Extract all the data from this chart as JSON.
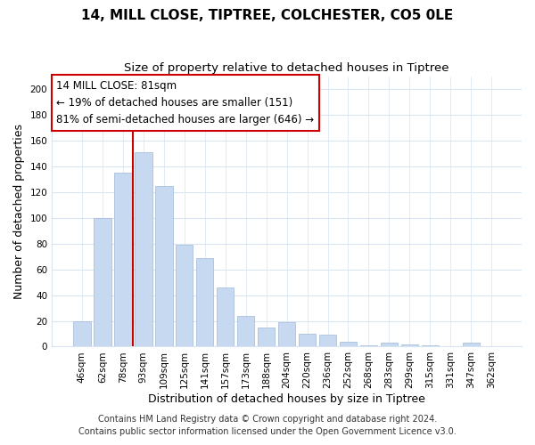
{
  "title": "14, MILL CLOSE, TIPTREE, COLCHESTER, CO5 0LE",
  "subtitle": "Size of property relative to detached houses in Tiptree",
  "xlabel": "Distribution of detached houses by size in Tiptree",
  "ylabel": "Number of detached properties",
  "bar_labels": [
    "46sqm",
    "62sqm",
    "78sqm",
    "93sqm",
    "109sqm",
    "125sqm",
    "141sqm",
    "157sqm",
    "173sqm",
    "188sqm",
    "204sqm",
    "220sqm",
    "236sqm",
    "252sqm",
    "268sqm",
    "283sqm",
    "299sqm",
    "315sqm",
    "331sqm",
    "347sqm",
    "362sqm"
  ],
  "bar_values": [
    20,
    100,
    135,
    151,
    125,
    79,
    69,
    46,
    24,
    15,
    19,
    10,
    9,
    4,
    1,
    3,
    2,
    1,
    0,
    3,
    0
  ],
  "bar_color": "#c6d9f0",
  "bar_edge_color": "#a0b8d8",
  "vline_x_index": 2,
  "vline_color": "#cc0000",
  "ylim": [
    0,
    210
  ],
  "yticks": [
    0,
    20,
    40,
    60,
    80,
    100,
    120,
    140,
    160,
    180,
    200
  ],
  "annotation_title": "14 MILL CLOSE: 81sqm",
  "annotation_line1": "← 19% of detached houses are smaller (151)",
  "annotation_line2": "81% of semi-detached houses are larger (646) →",
  "annotation_box_color": "#ffffff",
  "annotation_box_edgecolor": "#cc0000",
  "footer_line1": "Contains HM Land Registry data © Crown copyright and database right 2024.",
  "footer_line2": "Contains public sector information licensed under the Open Government Licence v3.0.",
  "title_fontsize": 11,
  "subtitle_fontsize": 9.5,
  "axis_label_fontsize": 9,
  "tick_fontsize": 7.5,
  "annotation_fontsize": 8.5,
  "footer_fontsize": 7,
  "background_color": "#ffffff",
  "grid_color": "#d8e4f0"
}
